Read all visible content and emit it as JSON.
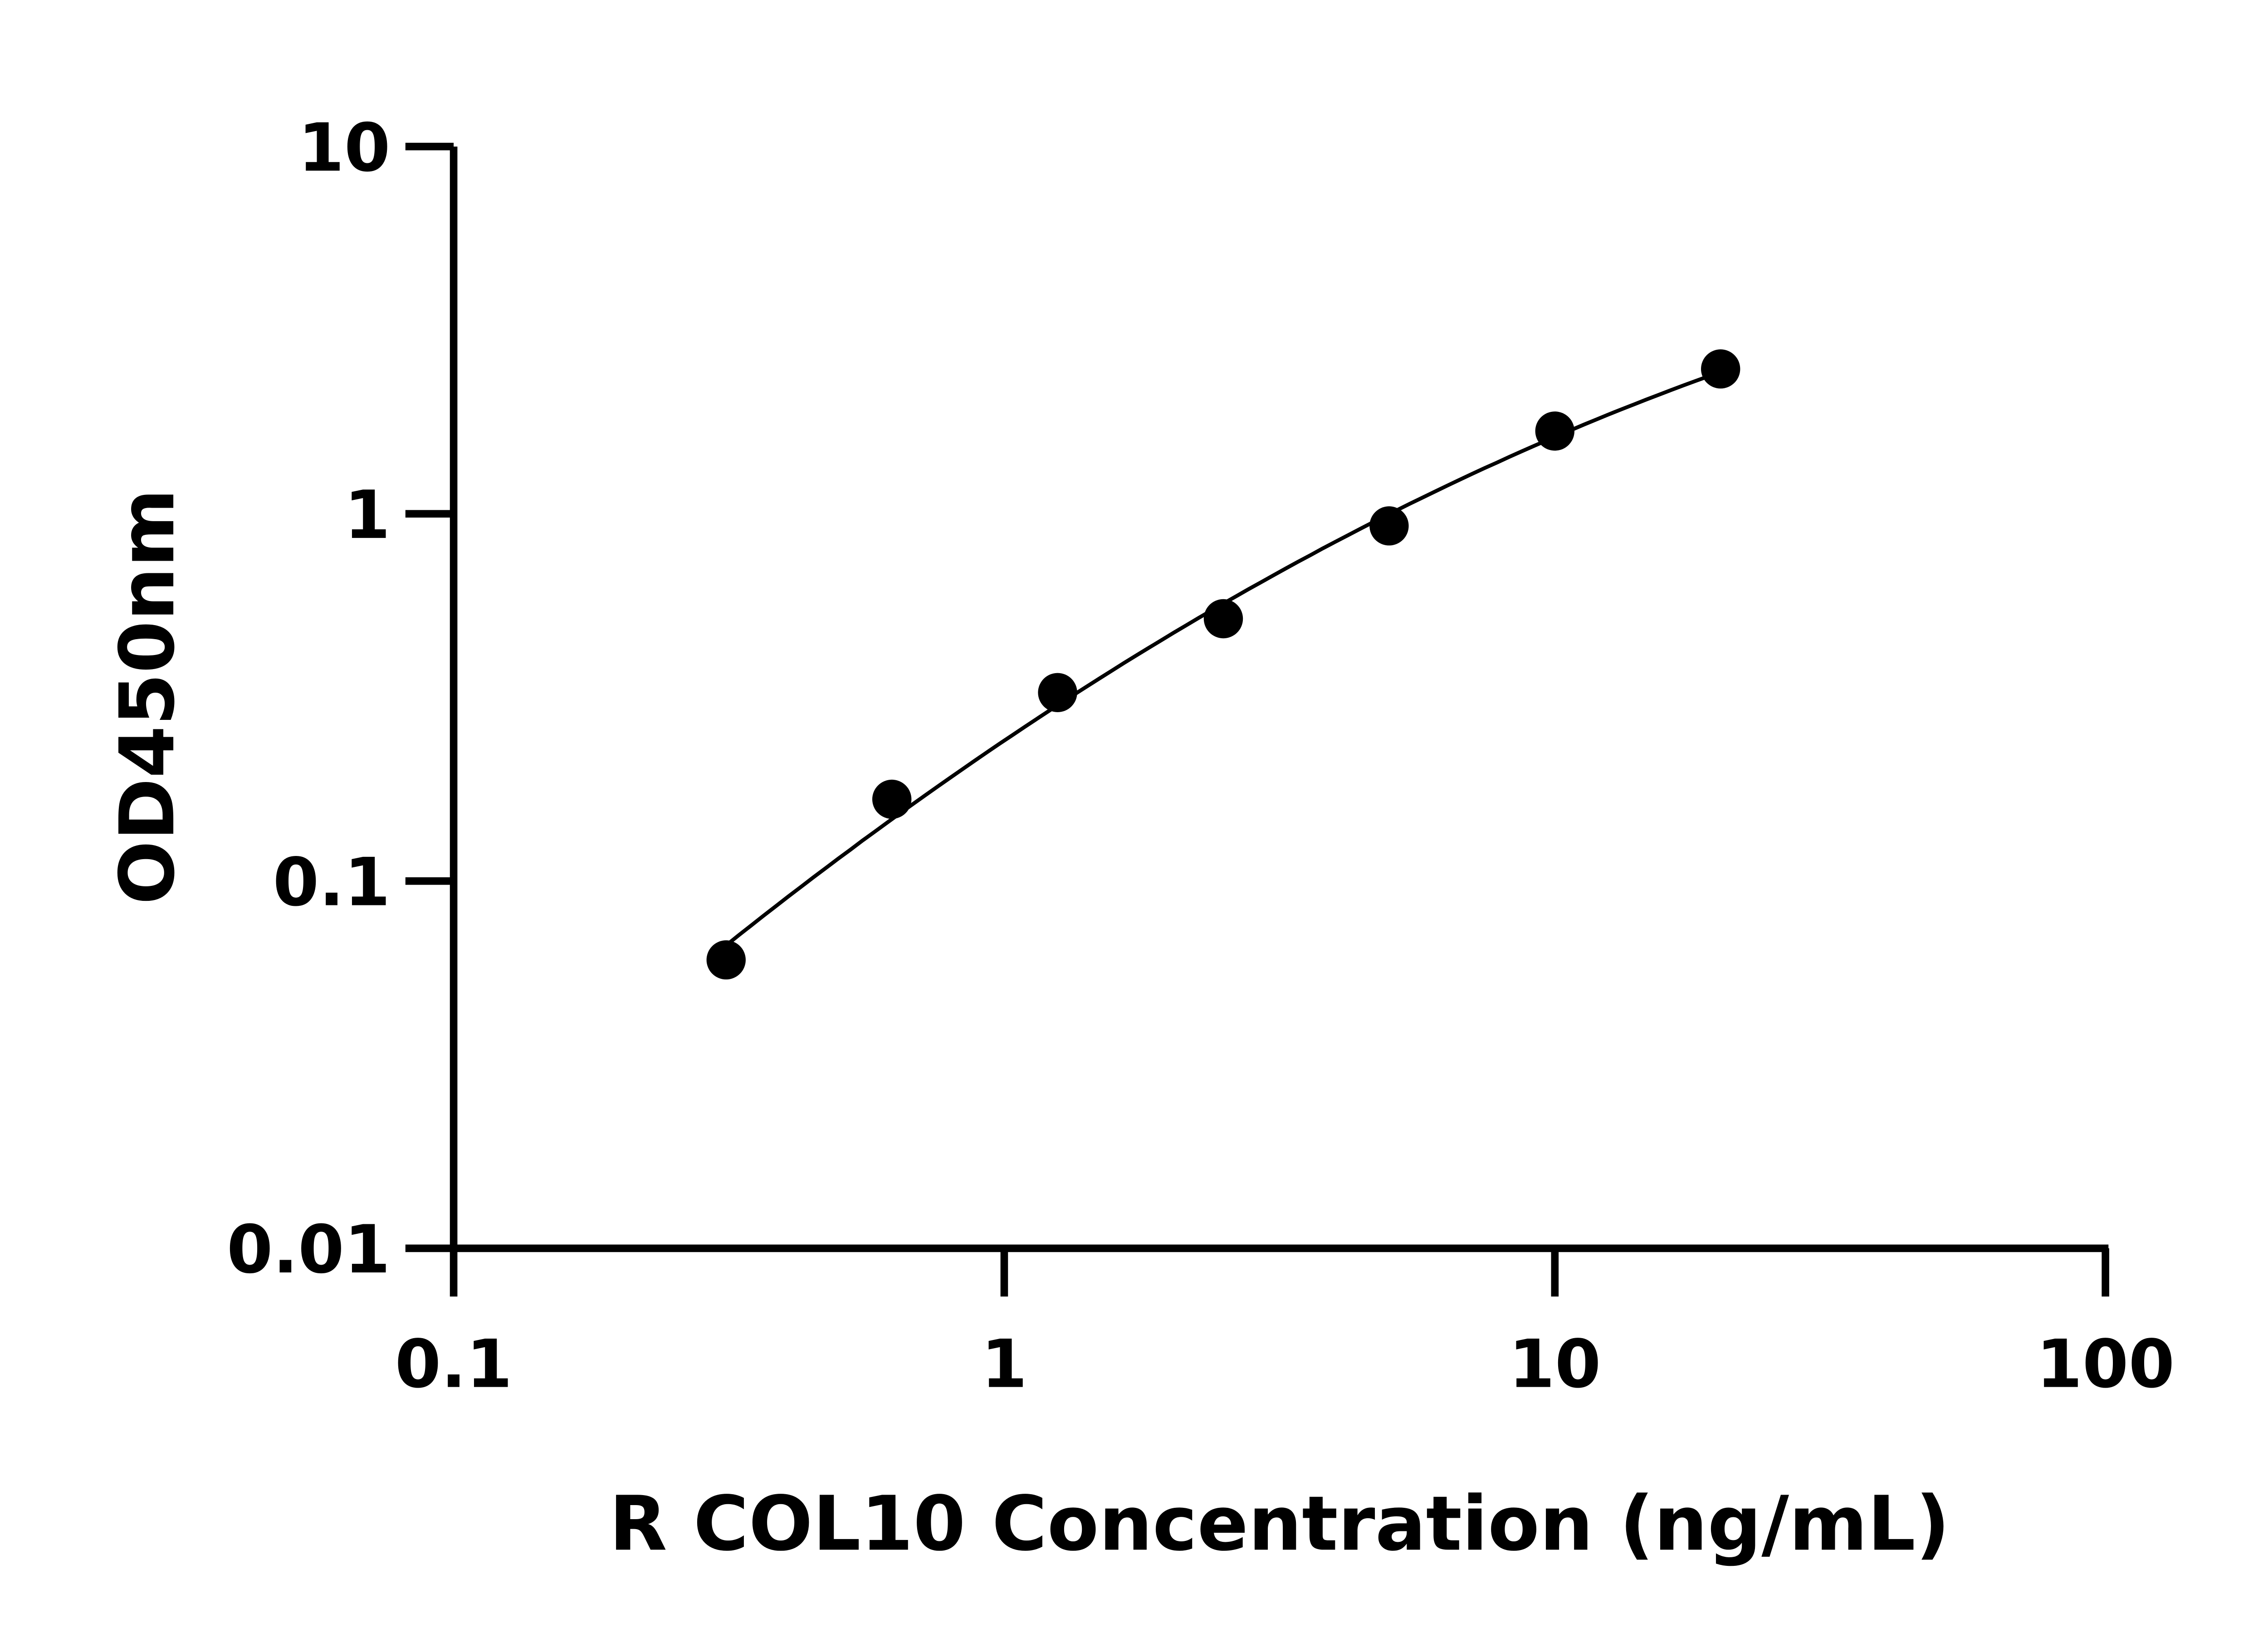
{
  "chart_data": {
    "type": "scatter",
    "title": "",
    "xlabel": "R COL10 Concentration (ng/mL)",
    "ylabel": "OD450nm",
    "xscale": "log",
    "yscale": "log",
    "xlim": [
      0.1,
      100
    ],
    "ylim": [
      0.01,
      10
    ],
    "xticks": [
      "0.1",
      "1",
      "10",
      "100"
    ],
    "yticks": [
      "0.01",
      "0.1",
      "1",
      "10"
    ],
    "grid": false,
    "legend": "none",
    "series": [
      {
        "x": [
          0.3125,
          0.625,
          1.25,
          2.5,
          5,
          10,
          20
        ],
        "y": [
          0.061,
          0.167,
          0.326,
          0.518,
          0.927,
          1.68,
          2.48
        ],
        "marker": "filled-circle",
        "color": "#000000",
        "fit_line": true
      }
    ]
  }
}
